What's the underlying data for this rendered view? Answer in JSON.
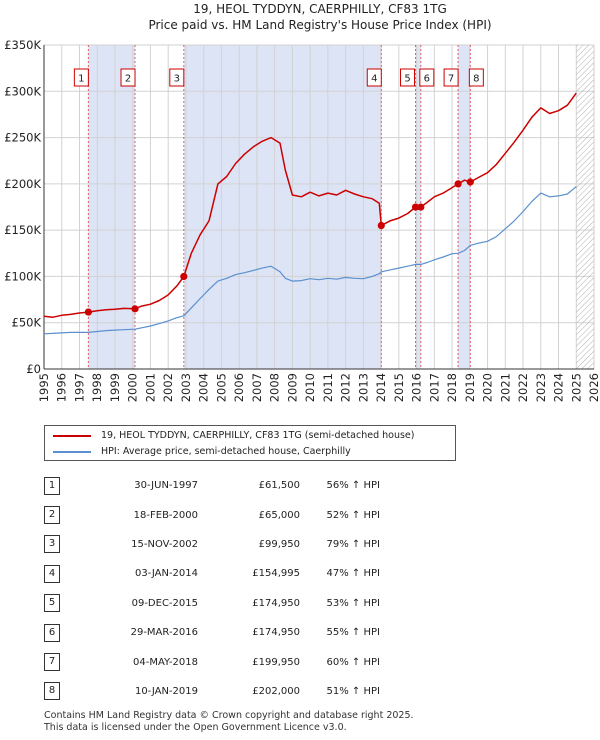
{
  "title": "19, HEOL TYDDYN, CAERPHILLY, CF83 1TG",
  "subtitle": "Price paid vs. HM Land Registry's House Price Index (HPI)",
  "colors": {
    "property": "#cc0000",
    "hpi": "#5b8fd0",
    "shade": "#dde4f6",
    "grid": "#d2d2d2",
    "vline": "#e06060",
    "marker": "#cc0000"
  },
  "chart_data": {
    "type": "line",
    "title": "19, HEOL TYDDYN, CAERPHILLY, CF83 1TG",
    "subtitle": "Price paid vs. HM Land Registry's House Price Index (HPI)",
    "xlabel": "",
    "ylabel": "",
    "xlim": [
      1995,
      2026
    ],
    "ylim": [
      0,
      350000
    ],
    "x_ticks": [
      1995,
      1996,
      1997,
      1998,
      1999,
      2000,
      2001,
      2002,
      2003,
      2004,
      2005,
      2006,
      2007,
      2008,
      2009,
      2010,
      2011,
      2012,
      2013,
      2014,
      2015,
      2016,
      2017,
      2018,
      2019,
      2020,
      2021,
      2022,
      2023,
      2024,
      2025,
      2026
    ],
    "y_ticks": [
      {
        "value": 0,
        "label": "£0"
      },
      {
        "value": 50000,
        "label": "£50K"
      },
      {
        "value": 100000,
        "label": "£100K"
      },
      {
        "value": 150000,
        "label": "£150K"
      },
      {
        "value": 200000,
        "label": "£200K"
      },
      {
        "value": 250000,
        "label": "£250K"
      },
      {
        "value": 300000,
        "label": "£300K"
      },
      {
        "value": 350000,
        "label": "£350K"
      }
    ],
    "grid": true,
    "forecast_start": 2025.0,
    "shaded_ranges": [
      [
        1997.5,
        2000.13
      ],
      [
        2002.88,
        2014.01
      ],
      [
        2015.94,
        2016.24
      ],
      [
        2018.34,
        2019.03
      ]
    ],
    "series": [
      {
        "name": "19, HEOL TYDDYN, CAERPHILLY, CF83 1TG (semi-detached house)",
        "x": [
          1995.0,
          1995.5,
          1996.0,
          1996.5,
          1997.0,
          1997.5,
          1998.0,
          1998.5,
          1999.0,
          1999.5,
          2000.13,
          2000.5,
          2001.0,
          2001.5,
          2002.0,
          2002.5,
          2002.88,
          2003.3,
          2003.8,
          2004.3,
          2004.8,
          2005.3,
          2005.8,
          2006.3,
          2006.8,
          2007.3,
          2007.8,
          2008.3,
          2008.6,
          2009.0,
          2009.5,
          2010.0,
          2010.5,
          2011.0,
          2011.5,
          2012.0,
          2012.5,
          2013.0,
          2013.5,
          2013.9,
          2014.01,
          2014.5,
          2015.0,
          2015.5,
          2015.94,
          2016.24,
          2016.6,
          2017.0,
          2017.5,
          2018.0,
          2018.34,
          2018.7,
          2019.03,
          2019.5,
          2020.0,
          2020.5,
          2021.0,
          2021.5,
          2022.0,
          2022.5,
          2023.0,
          2023.5,
          2024.0,
          2024.5,
          2025.0
        ],
        "values": [
          57000,
          56000,
          58000,
          59000,
          60500,
          61500,
          63000,
          64000,
          64500,
          65500,
          65000,
          68000,
          70000,
          74000,
          80000,
          90000,
          99950,
          125000,
          145000,
          160000,
          200000,
          208000,
          222000,
          232000,
          240000,
          246000,
          250000,
          244000,
          215000,
          188000,
          186000,
          191000,
          187000,
          190000,
          188000,
          193000,
          189000,
          186000,
          184000,
          179000,
          154995,
          160000,
          163000,
          168000,
          174950,
          174950,
          180000,
          186000,
          190000,
          196000,
          199950,
          204000,
          202000,
          207000,
          212000,
          221000,
          233000,
          245000,
          258000,
          272000,
          282000,
          276000,
          279000,
          285000,
          298000
        ]
      },
      {
        "name": "HPI: Average price, semi-detached house, Caerphilly",
        "x": [
          1995.0,
          1995.5,
          1996.0,
          1996.5,
          1997.0,
          1997.5,
          1998.0,
          1998.5,
          1999.0,
          1999.5,
          2000.13,
          2000.5,
          2001.0,
          2001.5,
          2002.0,
          2002.5,
          2002.88,
          2003.3,
          2003.8,
          2004.3,
          2004.8,
          2005.3,
          2005.8,
          2006.3,
          2006.8,
          2007.3,
          2007.8,
          2008.3,
          2008.6,
          2009.0,
          2009.5,
          2010.0,
          2010.5,
          2011.0,
          2011.5,
          2012.0,
          2012.5,
          2013.0,
          2013.5,
          2013.9,
          2014.01,
          2014.5,
          2015.0,
          2015.5,
          2015.94,
          2016.24,
          2016.6,
          2017.0,
          2017.5,
          2018.0,
          2018.34,
          2018.7,
          2019.03,
          2019.5,
          2020.0,
          2020.5,
          2021.0,
          2021.5,
          2022.0,
          2022.5,
          2023.0,
          2023.5,
          2024.0,
          2024.5,
          2025.0
        ],
        "values": [
          38000,
          38500,
          39000,
          39500,
          39500,
          39500,
          40500,
          41500,
          42000,
          42500,
          43000,
          44500,
          46500,
          49000,
          52000,
          55500,
          57500,
          66000,
          76000,
          86000,
          95000,
          98000,
          102000,
          104000,
          106500,
          109000,
          111000,
          105000,
          98000,
          95000,
          95500,
          97500,
          96500,
          98000,
          97000,
          99000,
          98000,
          97500,
          100000,
          103000,
          105000,
          107000,
          109000,
          111000,
          113000,
          113000,
          115000,
          118000,
          121000,
          124500,
          125000,
          128000,
          133500,
          136000,
          138000,
          143000,
          151500,
          160000,
          170000,
          181000,
          190000,
          186000,
          187000,
          189000,
          197000
        ]
      }
    ],
    "sales": [
      {
        "num": "1",
        "x": 1997.5,
        "price": 61500
      },
      {
        "num": "2",
        "x": 2000.13,
        "price": 65000
      },
      {
        "num": "3",
        "x": 2002.88,
        "price": 99950
      },
      {
        "num": "4",
        "x": 2014.01,
        "price": 154995
      },
      {
        "num": "5",
        "x": 2015.94,
        "price": 174950
      },
      {
        "num": "6",
        "x": 2016.24,
        "price": 174950
      },
      {
        "num": "7",
        "x": 2018.34,
        "price": 199950
      },
      {
        "num": "8",
        "x": 2019.03,
        "price": 202000
      }
    ]
  },
  "legend": {
    "property": "19, HEOL TYDDYN, CAERPHILLY, CF83 1TG (semi-detached house)",
    "hpi": "HPI: Average price, semi-detached house, Caerphilly"
  },
  "table": [
    {
      "num": "1",
      "date": "30-JUN-1997",
      "price": "£61,500",
      "hpi": "56% ↑ HPI"
    },
    {
      "num": "2",
      "date": "18-FEB-2000",
      "price": "£65,000",
      "hpi": "52% ↑ HPI"
    },
    {
      "num": "3",
      "date": "15-NOV-2002",
      "price": "£99,950",
      "hpi": "79% ↑ HPI"
    },
    {
      "num": "4",
      "date": "03-JAN-2014",
      "price": "£154,995",
      "hpi": "47% ↑ HPI"
    },
    {
      "num": "5",
      "date": "09-DEC-2015",
      "price": "£174,950",
      "hpi": "53% ↑ HPI"
    },
    {
      "num": "6",
      "date": "29-MAR-2016",
      "price": "£174,950",
      "hpi": "55% ↑ HPI"
    },
    {
      "num": "7",
      "date": "04-MAY-2018",
      "price": "£199,950",
      "hpi": "60% ↑ HPI"
    },
    {
      "num": "8",
      "date": "10-JAN-2019",
      "price": "£202,000",
      "hpi": "51% ↑ HPI"
    }
  ],
  "footer": {
    "line1": "Contains HM Land Registry data © Crown copyright and database right 2025.",
    "line2": "This data is licensed under the Open Government Licence v3.0."
  }
}
